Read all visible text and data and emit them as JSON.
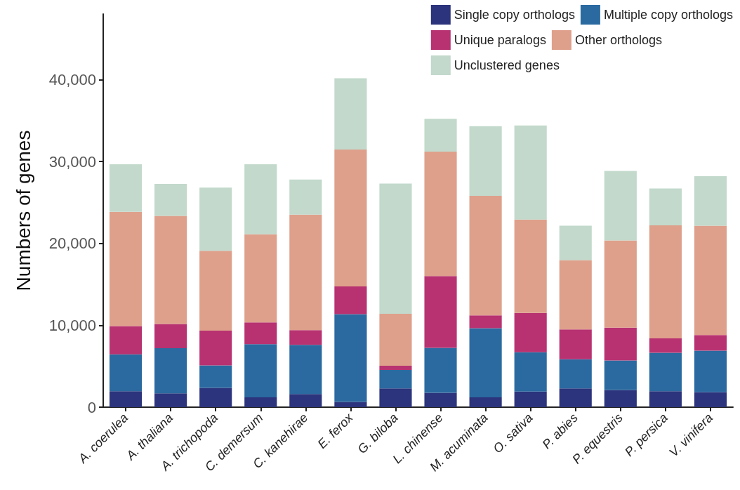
{
  "chart_data": {
    "type": "bar",
    "stacked": true,
    "ylabel": "Numbers of genes",
    "categories": [
      "A. coerulea",
      "A. thaliana",
      "A. trichopoda",
      "C. demersum",
      "C. kanehirae",
      "E. ferox",
      "G. biloba",
      "L. chinense",
      "M. acuminata",
      "O. sativa",
      "P. abies",
      "P. equestris",
      "P. persica",
      "V. vinifera"
    ],
    "series": [
      {
        "name": "Single copy orthologs",
        "color": "#2b347c",
        "values": [
          1950,
          1700,
          2350,
          1200,
          1600,
          650,
          2300,
          1750,
          1200,
          1900,
          2300,
          2100,
          1950,
          1850
        ]
      },
      {
        "name": "Multiple copy orthologs",
        "color": "#2a6aa0",
        "values": [
          4500,
          5500,
          2750,
          6500,
          6000,
          10700,
          2250,
          5500,
          8450,
          4800,
          3550,
          3600,
          4700,
          5050
        ]
      },
      {
        "name": "Unique paralogs",
        "color": "#b83271",
        "values": [
          3450,
          2950,
          4250,
          2650,
          1800,
          3400,
          500,
          8750,
          1550,
          4800,
          3650,
          4000,
          1750,
          1900
        ]
      },
      {
        "name": "Other orthologs",
        "color": "#dea08b",
        "values": [
          13950,
          13200,
          9750,
          10750,
          14100,
          16700,
          6350,
          15200,
          14600,
          11400,
          8450,
          10650,
          13800,
          13350
        ]
      },
      {
        "name": "Unclustered genes",
        "color": "#c2d9cb",
        "values": [
          5800,
          3900,
          7700,
          8550,
          4300,
          8700,
          15900,
          4000,
          8500,
          11500,
          4200,
          8500,
          4500,
          6050
        ]
      }
    ],
    "ylim": [
      0,
      48000
    ],
    "yticks": [
      {
        "value": 0,
        "label": "0"
      },
      {
        "value": 10000,
        "label": "10,000"
      },
      {
        "value": 20000,
        "label": "20,000"
      },
      {
        "value": 30000,
        "label": "30,000"
      },
      {
        "value": 40000,
        "label": "40,000"
      }
    ],
    "grid": false,
    "legend": "top right"
  }
}
